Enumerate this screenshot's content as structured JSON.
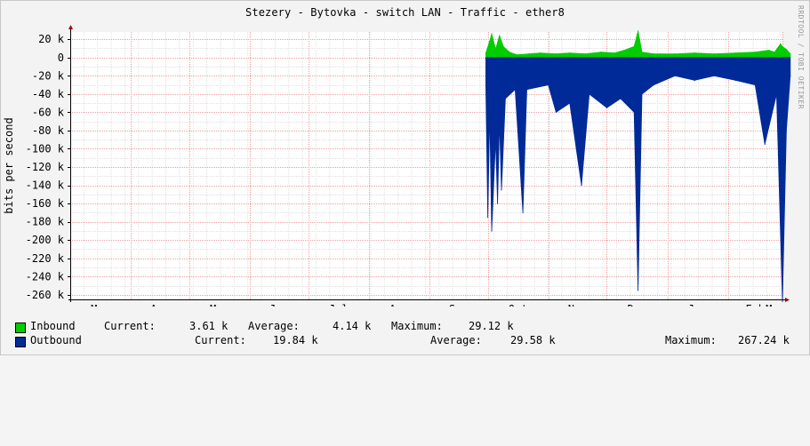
{
  "title": "Stezery - Bytovka - switch LAN - Traffic - ether8",
  "watermark": "RRDTOOL / TOBI OETIKER",
  "colors": {
    "inbound": "#00cc00",
    "outbound": "#002a97",
    "background": "#f3f3f3",
    "grid_minor": "#e0e0e0",
    "grid_major": "#f0a0a0",
    "axis_arrow": "#a00000"
  },
  "chart_data": {
    "type": "area",
    "title": "Stezery - Bytovka - switch LAN - Traffic - ether8",
    "ylabel": "bits per second",
    "xlabel": "",
    "ylim": [
      -265000,
      28000
    ],
    "yticks": [
      20000,
      0,
      -20000,
      -40000,
      -60000,
      -80000,
      -100000,
      -120000,
      -140000,
      -160000,
      -180000,
      -200000,
      -220000,
      -240000,
      -260000
    ],
    "ytick_labels": [
      "20 k",
      "0",
      "-20 k",
      "-40 k",
      "-60 k",
      "-80 k",
      "-100 k",
      "-120 k",
      "-140 k",
      "-160 k",
      "-180 k",
      "-200 k",
      "-220 k",
      "-240 k",
      "-260 k"
    ],
    "x_month_labels": [
      "Mar",
      "Apr",
      "May",
      "Jun",
      "Jul",
      "Aug",
      "Sep",
      "Oct",
      "Nov",
      "Dec",
      "Jan",
      "Feb",
      "Mar"
    ],
    "grid": true,
    "series": [
      {
        "name": "Inbound",
        "color": "#00cc00",
        "points": [
          [
            "Sep 30",
            5000
          ],
          [
            "Oct 2",
            18000
          ],
          [
            "Oct 3",
            26000
          ],
          [
            "Oct 5",
            9000
          ],
          [
            "Oct 7",
            24000
          ],
          [
            "Oct 9",
            12000
          ],
          [
            "Oct 12",
            6000
          ],
          [
            "Oct 16",
            3000
          ],
          [
            "Oct 22",
            4000
          ],
          [
            "Oct 28",
            5000
          ],
          [
            "Nov 5",
            4000
          ],
          [
            "Nov 12",
            5000
          ],
          [
            "Nov 20",
            4000
          ],
          [
            "Nov 28",
            6000
          ],
          [
            "Dec 5",
            5000
          ],
          [
            "Dec 10",
            8000
          ],
          [
            "Dec 15",
            12000
          ],
          [
            "Dec 17",
            29000
          ],
          [
            "Dec 19",
            6000
          ],
          [
            "Dec 25",
            4000
          ],
          [
            "Jan 5",
            4000
          ],
          [
            "Jan 15",
            5000
          ],
          [
            "Jan 25",
            4000
          ],
          [
            "Feb 5",
            5000
          ],
          [
            "Feb 15",
            6000
          ],
          [
            "Feb 22",
            8000
          ],
          [
            "Feb 25",
            6000
          ],
          [
            "Feb 28",
            15000
          ],
          [
            "Mar 1",
            12000
          ],
          [
            "Mar 3",
            9000
          ],
          [
            "Mar 5",
            4000
          ]
        ]
      },
      {
        "name": "Outbound",
        "color": "#002a97",
        "points": [
          [
            "Sep 30",
            -30000
          ],
          [
            "Oct 1",
            -175000
          ],
          [
            "Oct 2",
            -60000
          ],
          [
            "Oct 3",
            -190000
          ],
          [
            "Oct 5",
            -90000
          ],
          [
            "Oct 6",
            -160000
          ],
          [
            "Oct 7",
            -70000
          ],
          [
            "Oct 8",
            -145000
          ],
          [
            "Oct 10",
            -45000
          ],
          [
            "Oct 15",
            -35000
          ],
          [
            "Oct 19",
            -170000
          ],
          [
            "Oct 21",
            -35000
          ],
          [
            "Nov 1",
            -30000
          ],
          [
            "Nov 5",
            -60000
          ],
          [
            "Nov 12",
            -50000
          ],
          [
            "Nov 18",
            -140000
          ],
          [
            "Nov 22",
            -40000
          ],
          [
            "Dec 1",
            -55000
          ],
          [
            "Dec 8",
            -45000
          ],
          [
            "Dec 15",
            -60000
          ],
          [
            "Dec 17",
            -255000
          ],
          [
            "Dec 19",
            -40000
          ],
          [
            "Dec 25",
            -30000
          ],
          [
            "Jan 5",
            -20000
          ],
          [
            "Jan 15",
            -25000
          ],
          [
            "Jan 25",
            -20000
          ],
          [
            "Feb 5",
            -25000
          ],
          [
            "Feb 15",
            -30000
          ],
          [
            "Feb 20",
            -95000
          ],
          [
            "Feb 26",
            -40000
          ],
          [
            "Mar 1",
            -267240
          ],
          [
            "Mar 3",
            -80000
          ],
          [
            "Mar 5",
            -20000
          ]
        ]
      }
    ]
  },
  "legend": {
    "inbound": {
      "label": "Inbound",
      "current_label": "Current:",
      "current": "3.61 k",
      "average_label": "Average:",
      "average": "4.14 k",
      "maximum_label": "Maximum:",
      "maximum": "29.12 k"
    },
    "outbound": {
      "label": "Outbound",
      "current_label": "Current:",
      "current": "19.84 k",
      "average_label": "Average:",
      "average": "29.58 k",
      "maximum_label": "Maximum:",
      "maximum": "267.24 k"
    }
  }
}
